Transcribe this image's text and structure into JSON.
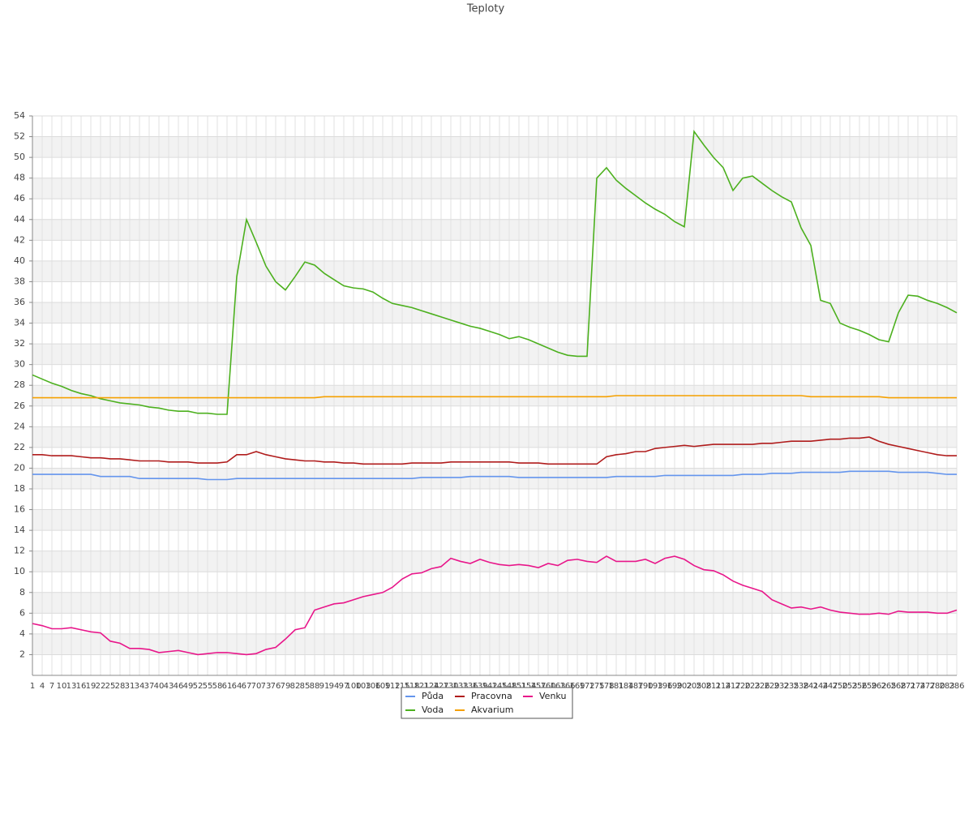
{
  "chart_data": {
    "type": "line",
    "title": "Teploty",
    "categories": [
      1,
      4,
      7,
      10,
      13,
      16,
      19,
      22,
      25,
      28,
      31,
      34,
      37,
      40,
      43,
      46,
      49,
      52,
      55,
      58,
      61,
      64,
      67,
      70,
      73,
      76,
      79,
      82,
      85,
      88,
      91,
      94,
      97,
      100,
      103,
      106,
      109,
      112,
      115,
      118,
      121,
      124,
      127,
      130,
      133,
      136,
      139,
      142,
      145,
      148,
      151,
      154,
      157,
      160,
      163,
      166,
      169,
      172,
      175,
      178,
      181,
      184,
      187,
      190,
      193,
      196,
      199,
      202,
      205,
      208,
      211,
      214,
      217,
      220,
      223,
      226,
      229,
      232,
      235,
      238,
      241,
      244,
      247,
      250,
      253,
      256,
      259,
      262,
      265,
      268,
      271,
      274,
      277,
      280,
      283,
      286
    ],
    "series": [
      {
        "name": "Půda",
        "color": "#6495ed",
        "values": [
          19.4,
          19.4,
          19.4,
          19.4,
          19.4,
          19.4,
          19.4,
          19.2,
          19.2,
          19.2,
          19.2,
          19.0,
          19.0,
          19.0,
          19.0,
          19.0,
          19.0,
          19.0,
          18.9,
          18.9,
          18.9,
          19.0,
          19.0,
          19.0,
          19.0,
          19.0,
          19.0,
          19.0,
          19.0,
          19.0,
          19.0,
          19.0,
          19.0,
          19.0,
          19.0,
          19.0,
          19.0,
          19.0,
          19.0,
          19.0,
          19.1,
          19.1,
          19.1,
          19.1,
          19.1,
          19.2,
          19.2,
          19.2,
          19.2,
          19.2,
          19.1,
          19.1,
          19.1,
          19.1,
          19.1,
          19.1,
          19.1,
          19.1,
          19.1,
          19.1,
          19.2,
          19.2,
          19.2,
          19.2,
          19.2,
          19.3,
          19.3,
          19.3,
          19.3,
          19.3,
          19.3,
          19.3,
          19.3,
          19.4,
          19.4,
          19.4,
          19.5,
          19.5,
          19.5,
          19.6,
          19.6,
          19.6,
          19.6,
          19.6,
          19.7,
          19.7,
          19.7,
          19.7,
          19.7,
          19.6,
          19.6,
          19.6,
          19.6,
          19.5,
          19.4,
          19.4
        ]
      },
      {
        "name": "Voda",
        "color": "#4cb01e",
        "values": [
          29.0,
          28.6,
          28.2,
          27.9,
          27.5,
          27.2,
          27.0,
          26.7,
          26.5,
          26.3,
          26.2,
          26.1,
          25.9,
          25.8,
          25.6,
          25.5,
          25.5,
          25.3,
          25.3,
          25.2,
          25.2,
          38.5,
          44.0,
          41.8,
          39.5,
          38.0,
          37.2,
          38.5,
          39.9,
          39.6,
          38.8,
          38.2,
          37.6,
          37.4,
          37.3,
          37.0,
          36.4,
          35.9,
          35.7,
          35.5,
          35.2,
          34.9,
          34.6,
          34.3,
          34.0,
          33.7,
          33.5,
          33.2,
          32.9,
          32.5,
          32.7,
          32.4,
          32.0,
          31.6,
          31.2,
          30.9,
          30.8,
          30.8,
          48.0,
          49.0,
          47.8,
          47.0,
          46.3,
          45.6,
          45.0,
          44.5,
          43.8,
          43.3,
          52.5,
          51.2,
          50.0,
          49.0,
          46.8,
          48.0,
          48.2,
          47.5,
          46.8,
          46.2,
          45.7,
          43.2,
          41.5,
          36.2,
          35.9,
          34.0,
          33.6,
          33.3,
          32.9,
          32.4,
          32.2,
          35.0,
          36.7,
          36.6,
          36.2,
          35.9,
          35.5,
          35.0
        ]
      },
      {
        "name": "Pracovna",
        "color": "#b01c1c",
        "values": [
          21.3,
          21.3,
          21.2,
          21.2,
          21.2,
          21.1,
          21.0,
          21.0,
          20.9,
          20.9,
          20.8,
          20.7,
          20.7,
          20.7,
          20.6,
          20.6,
          20.6,
          20.5,
          20.5,
          20.5,
          20.6,
          21.3,
          21.3,
          21.6,
          21.3,
          21.1,
          20.9,
          20.8,
          20.7,
          20.7,
          20.6,
          20.6,
          20.5,
          20.5,
          20.4,
          20.4,
          20.4,
          20.4,
          20.4,
          20.5,
          20.5,
          20.5,
          20.5,
          20.6,
          20.6,
          20.6,
          20.6,
          20.6,
          20.6,
          20.6,
          20.5,
          20.5,
          20.5,
          20.4,
          20.4,
          20.4,
          20.4,
          20.4,
          20.4,
          21.1,
          21.3,
          21.4,
          21.6,
          21.6,
          21.9,
          22.0,
          22.1,
          22.2,
          22.1,
          22.2,
          22.3,
          22.3,
          22.3,
          22.3,
          22.3,
          22.4,
          22.4,
          22.5,
          22.6,
          22.6,
          22.6,
          22.7,
          22.8,
          22.8,
          22.9,
          22.9,
          23.0,
          22.6,
          22.3,
          22.1,
          21.9,
          21.7,
          21.5,
          21.3,
          21.2,
          21.2
        ]
      },
      {
        "name": "Akvarium",
        "color": "#f5a000",
        "values": [
          26.8,
          26.8,
          26.8,
          26.8,
          26.8,
          26.8,
          26.8,
          26.8,
          26.8,
          26.8,
          26.8,
          26.8,
          26.8,
          26.8,
          26.8,
          26.8,
          26.8,
          26.8,
          26.8,
          26.8,
          26.8,
          26.8,
          26.8,
          26.8,
          26.8,
          26.8,
          26.8,
          26.8,
          26.8,
          26.8,
          26.9,
          26.9,
          26.9,
          26.9,
          26.9,
          26.9,
          26.9,
          26.9,
          26.9,
          26.9,
          26.9,
          26.9,
          26.9,
          26.9,
          26.9,
          26.9,
          26.9,
          26.9,
          26.9,
          26.9,
          26.9,
          26.9,
          26.9,
          26.9,
          26.9,
          26.9,
          26.9,
          26.9,
          26.9,
          26.9,
          27.0,
          27.0,
          27.0,
          27.0,
          27.0,
          27.0,
          27.0,
          27.0,
          27.0,
          27.0,
          27.0,
          27.0,
          27.0,
          27.0,
          27.0,
          27.0,
          27.0,
          27.0,
          27.0,
          27.0,
          26.9,
          26.9,
          26.9,
          26.9,
          26.9,
          26.9,
          26.9,
          26.9,
          26.8,
          26.8,
          26.8,
          26.8,
          26.8,
          26.8,
          26.8,
          26.8
        ]
      },
      {
        "name": "Venku",
        "color": "#e8168a",
        "values": [
          5.0,
          4.8,
          4.5,
          4.5,
          4.6,
          4.4,
          4.2,
          4.1,
          3.3,
          3.1,
          2.6,
          2.6,
          2.5,
          2.2,
          2.3,
          2.4,
          2.2,
          2.0,
          2.1,
          2.2,
          2.2,
          2.1,
          2.0,
          2.1,
          2.5,
          2.7,
          3.5,
          4.4,
          4.6,
          6.3,
          6.6,
          6.9,
          7.0,
          7.3,
          7.6,
          7.8,
          8.0,
          8.5,
          9.3,
          9.8,
          9.9,
          10.3,
          10.5,
          11.3,
          11.0,
          10.8,
          11.2,
          10.9,
          10.7,
          10.6,
          10.7,
          10.6,
          10.4,
          10.8,
          10.6,
          11.1,
          11.2,
          11.0,
          10.9,
          11.5,
          11.0,
          11.0,
          11.0,
          11.2,
          10.8,
          11.3,
          11.5,
          11.2,
          10.6,
          10.2,
          10.1,
          9.7,
          9.1,
          8.7,
          8.4,
          8.1,
          7.3,
          6.9,
          6.5,
          6.6,
          6.4,
          6.6,
          6.3,
          6.1,
          6.0,
          5.9,
          5.9,
          6.0,
          5.9,
          6.2,
          6.1,
          6.1,
          6.1,
          6.0,
          6.0,
          6.3
        ]
      }
    ],
    "ylim": [
      0,
      54
    ],
    "yticks": [
      2,
      4,
      6,
      8,
      10,
      12,
      14,
      16,
      18,
      20,
      22,
      24,
      26,
      28,
      30,
      32,
      34,
      36,
      38,
      40,
      42,
      44,
      46,
      48,
      50,
      52,
      54
    ],
    "grid": true
  }
}
